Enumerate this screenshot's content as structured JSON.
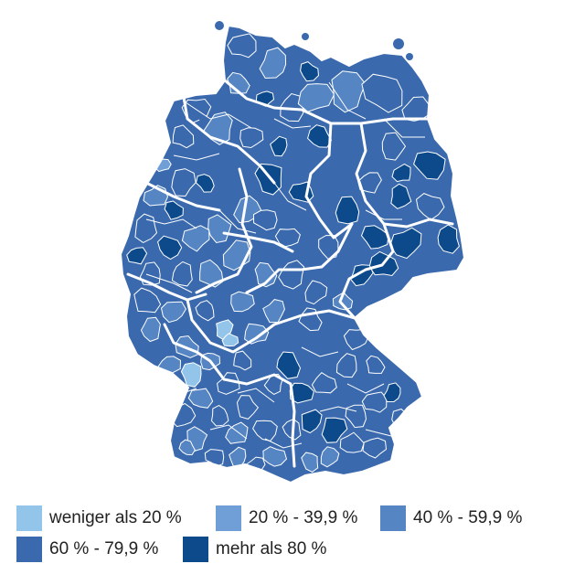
{
  "colors": {
    "c0": "#93c5ea",
    "c1": "#6f9fd6",
    "c2": "#5585c2",
    "c3": "#3a69ad",
    "c4": "#0d4a8c",
    "border": "#ffffff"
  },
  "legend": {
    "items": [
      {
        "label": "weniger als 20 %",
        "color": "#93c5ea"
      },
      {
        "label": "20 % - 39,9 %",
        "color": "#6f9fd6"
      },
      {
        "label": "40 % - 59,9 %",
        "color": "#5585c2"
      },
      {
        "label": "60 % - 79,9 %",
        "color": "#3a69ad"
      },
      {
        "label": "mehr als 80 %",
        "color": "#0d4a8c"
      }
    ]
  }
}
